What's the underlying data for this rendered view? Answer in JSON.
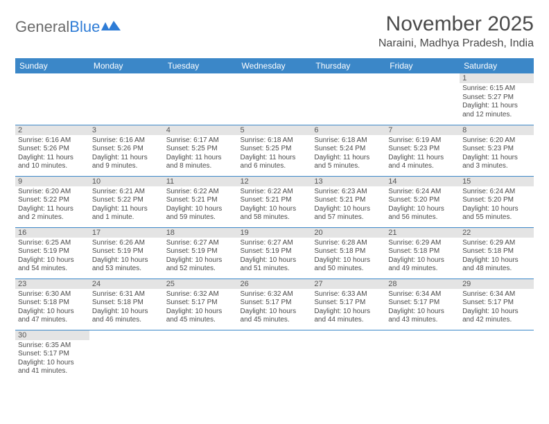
{
  "logo": {
    "text1": "General",
    "text2": "Blue",
    "text1_color": "#6a6a6a",
    "text2_color": "#2e7cd6"
  },
  "title": "November 2025",
  "location": "Naraini, Madhya Pradesh, India",
  "colors": {
    "header_bg": "#3b87c8",
    "header_text": "#ffffff",
    "daynum_bg": "#e4e4e4",
    "row_border": "#3b87c8",
    "body_text": "#4a4a4a",
    "page_bg": "#ffffff"
  },
  "typography": {
    "title_fontsize": 30,
    "location_fontsize": 16,
    "dayhead_fontsize": 12,
    "cell_fontsize": 10
  },
  "day_headers": [
    "Sunday",
    "Monday",
    "Tuesday",
    "Wednesday",
    "Thursday",
    "Friday",
    "Saturday"
  ],
  "weeks": [
    [
      null,
      null,
      null,
      null,
      null,
      null,
      {
        "n": "1",
        "sr": "Sunrise: 6:15 AM",
        "ss": "Sunset: 5:27 PM",
        "dl": "Daylight: 11 hours and 12 minutes."
      }
    ],
    [
      {
        "n": "2",
        "sr": "Sunrise: 6:16 AM",
        "ss": "Sunset: 5:26 PM",
        "dl": "Daylight: 11 hours and 10 minutes."
      },
      {
        "n": "3",
        "sr": "Sunrise: 6:16 AM",
        "ss": "Sunset: 5:26 PM",
        "dl": "Daylight: 11 hours and 9 minutes."
      },
      {
        "n": "4",
        "sr": "Sunrise: 6:17 AM",
        "ss": "Sunset: 5:25 PM",
        "dl": "Daylight: 11 hours and 8 minutes."
      },
      {
        "n": "5",
        "sr": "Sunrise: 6:18 AM",
        "ss": "Sunset: 5:25 PM",
        "dl": "Daylight: 11 hours and 6 minutes."
      },
      {
        "n": "6",
        "sr": "Sunrise: 6:18 AM",
        "ss": "Sunset: 5:24 PM",
        "dl": "Daylight: 11 hours and 5 minutes."
      },
      {
        "n": "7",
        "sr": "Sunrise: 6:19 AM",
        "ss": "Sunset: 5:23 PM",
        "dl": "Daylight: 11 hours and 4 minutes."
      },
      {
        "n": "8",
        "sr": "Sunrise: 6:20 AM",
        "ss": "Sunset: 5:23 PM",
        "dl": "Daylight: 11 hours and 3 minutes."
      }
    ],
    [
      {
        "n": "9",
        "sr": "Sunrise: 6:20 AM",
        "ss": "Sunset: 5:22 PM",
        "dl": "Daylight: 11 hours and 2 minutes."
      },
      {
        "n": "10",
        "sr": "Sunrise: 6:21 AM",
        "ss": "Sunset: 5:22 PM",
        "dl": "Daylight: 11 hours and 1 minute."
      },
      {
        "n": "11",
        "sr": "Sunrise: 6:22 AM",
        "ss": "Sunset: 5:21 PM",
        "dl": "Daylight: 10 hours and 59 minutes."
      },
      {
        "n": "12",
        "sr": "Sunrise: 6:22 AM",
        "ss": "Sunset: 5:21 PM",
        "dl": "Daylight: 10 hours and 58 minutes."
      },
      {
        "n": "13",
        "sr": "Sunrise: 6:23 AM",
        "ss": "Sunset: 5:21 PM",
        "dl": "Daylight: 10 hours and 57 minutes."
      },
      {
        "n": "14",
        "sr": "Sunrise: 6:24 AM",
        "ss": "Sunset: 5:20 PM",
        "dl": "Daylight: 10 hours and 56 minutes."
      },
      {
        "n": "15",
        "sr": "Sunrise: 6:24 AM",
        "ss": "Sunset: 5:20 PM",
        "dl": "Daylight: 10 hours and 55 minutes."
      }
    ],
    [
      {
        "n": "16",
        "sr": "Sunrise: 6:25 AM",
        "ss": "Sunset: 5:19 PM",
        "dl": "Daylight: 10 hours and 54 minutes."
      },
      {
        "n": "17",
        "sr": "Sunrise: 6:26 AM",
        "ss": "Sunset: 5:19 PM",
        "dl": "Daylight: 10 hours and 53 minutes."
      },
      {
        "n": "18",
        "sr": "Sunrise: 6:27 AM",
        "ss": "Sunset: 5:19 PM",
        "dl": "Daylight: 10 hours and 52 minutes."
      },
      {
        "n": "19",
        "sr": "Sunrise: 6:27 AM",
        "ss": "Sunset: 5:19 PM",
        "dl": "Daylight: 10 hours and 51 minutes."
      },
      {
        "n": "20",
        "sr": "Sunrise: 6:28 AM",
        "ss": "Sunset: 5:18 PM",
        "dl": "Daylight: 10 hours and 50 minutes."
      },
      {
        "n": "21",
        "sr": "Sunrise: 6:29 AM",
        "ss": "Sunset: 5:18 PM",
        "dl": "Daylight: 10 hours and 49 minutes."
      },
      {
        "n": "22",
        "sr": "Sunrise: 6:29 AM",
        "ss": "Sunset: 5:18 PM",
        "dl": "Daylight: 10 hours and 48 minutes."
      }
    ],
    [
      {
        "n": "23",
        "sr": "Sunrise: 6:30 AM",
        "ss": "Sunset: 5:18 PM",
        "dl": "Daylight: 10 hours and 47 minutes."
      },
      {
        "n": "24",
        "sr": "Sunrise: 6:31 AM",
        "ss": "Sunset: 5:18 PM",
        "dl": "Daylight: 10 hours and 46 minutes."
      },
      {
        "n": "25",
        "sr": "Sunrise: 6:32 AM",
        "ss": "Sunset: 5:17 PM",
        "dl": "Daylight: 10 hours and 45 minutes."
      },
      {
        "n": "26",
        "sr": "Sunrise: 6:32 AM",
        "ss": "Sunset: 5:17 PM",
        "dl": "Daylight: 10 hours and 45 minutes."
      },
      {
        "n": "27",
        "sr": "Sunrise: 6:33 AM",
        "ss": "Sunset: 5:17 PM",
        "dl": "Daylight: 10 hours and 44 minutes."
      },
      {
        "n": "28",
        "sr": "Sunrise: 6:34 AM",
        "ss": "Sunset: 5:17 PM",
        "dl": "Daylight: 10 hours and 43 minutes."
      },
      {
        "n": "29",
        "sr": "Sunrise: 6:34 AM",
        "ss": "Sunset: 5:17 PM",
        "dl": "Daylight: 10 hours and 42 minutes."
      }
    ],
    [
      {
        "n": "30",
        "sr": "Sunrise: 6:35 AM",
        "ss": "Sunset: 5:17 PM",
        "dl": "Daylight: 10 hours and 41 minutes."
      },
      null,
      null,
      null,
      null,
      null,
      null
    ]
  ]
}
